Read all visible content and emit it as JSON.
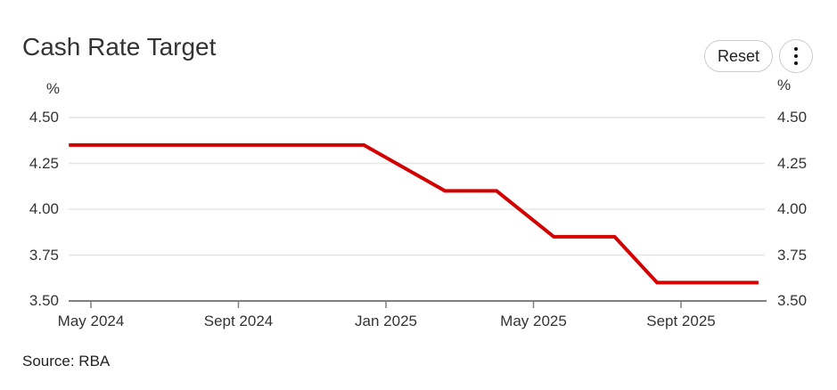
{
  "controls": {
    "reset_label": "Reset",
    "menu_icon": "kebab-menu-icon"
  },
  "colors": {
    "line": "#d40000",
    "grid": "#e6e6e6",
    "axis": "#808080",
    "text": "#333333"
  },
  "chart_data": {
    "type": "line",
    "title": "Cash Rate Target",
    "unit_left": "%",
    "unit_right": "%",
    "ylim": [
      3.5,
      4.5
    ],
    "grid": true,
    "legend": "none",
    "source": "Source: RBA",
    "y_ticks": [
      {
        "label": "4.50",
        "value": 4.5
      },
      {
        "label": "4.25",
        "value": 4.25
      },
      {
        "label": "4.00",
        "value": 4.0
      },
      {
        "label": "3.75",
        "value": 3.75
      },
      {
        "label": "3.50",
        "value": 3.5
      }
    ],
    "x_unit": "months since Apr 2024",
    "x_ticks": [
      {
        "label": "May 2024",
        "m": 1
      },
      {
        "label": "Sept 2024",
        "m": 5
      },
      {
        "label": "Jan 2025",
        "m": 9
      },
      {
        "label": "May 2025",
        "m": 13
      },
      {
        "label": "Sept 2025",
        "m": 17
      }
    ],
    "series": [
      {
        "name": "Cash Rate Target",
        "color": "#d40000",
        "points": [
          {
            "date": "Apr 2024",
            "m": 0.4,
            "value": 4.35
          },
          {
            "date": "Dec 2024",
            "m": 8.4,
            "value": 4.35
          },
          {
            "date": "Feb 2025",
            "m": 10.6,
            "value": 4.1
          },
          {
            "date": "Apr 2025",
            "m": 12.0,
            "value": 4.1
          },
          {
            "date": "May 2025",
            "m": 13.55,
            "value": 3.85
          },
          {
            "date": "Jul 2025",
            "m": 15.2,
            "value": 3.85
          },
          {
            "date": "Aug 2025",
            "m": 16.35,
            "value": 3.6
          },
          {
            "date": "Nov 2025",
            "m": 19.1,
            "value": 3.6
          }
        ]
      }
    ]
  }
}
